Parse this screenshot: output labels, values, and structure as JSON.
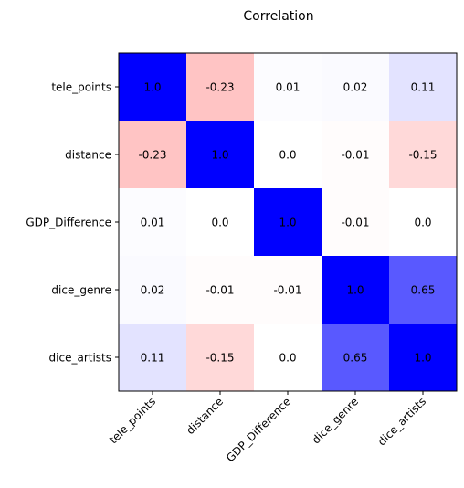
{
  "chart_data": {
    "type": "heatmap",
    "title": "Correlation",
    "x_categories": [
      "tele_points",
      "distance",
      "GDP_Difference",
      "dice_genre",
      "dice_artists"
    ],
    "y_categories": [
      "tele_points",
      "distance",
      "GDP_Difference",
      "dice_genre",
      "dice_artists"
    ],
    "values": [
      [
        1.0,
        -0.23,
        0.01,
        0.02,
        0.11
      ],
      [
        -0.23,
        1.0,
        0.0,
        -0.01,
        -0.15
      ],
      [
        0.01,
        0.0,
        1.0,
        -0.01,
        0.0
      ],
      [
        0.02,
        -0.01,
        -0.01,
        1.0,
        0.65
      ],
      [
        0.11,
        -0.15,
        0.0,
        0.65,
        1.0
      ]
    ],
    "value_labels": [
      [
        "1.0",
        "-0.23",
        "0.01",
        "0.02",
        "0.11"
      ],
      [
        "-0.23",
        "1.0",
        "0.0",
        "-0.01",
        "-0.15"
      ],
      [
        "0.01",
        "0.0",
        "1.0",
        "-0.01",
        "0.0"
      ],
      [
        "0.02",
        "-0.01",
        "-0.01",
        "1.0",
        "0.65"
      ],
      [
        "0.11",
        "-0.15",
        "0.0",
        "0.65",
        "1.0"
      ]
    ],
    "colormap": "bwr_r",
    "vmin": -1,
    "vmax": 1,
    "colors": {
      "positive": "#0000ff",
      "negative": "#ff0000",
      "zero": "#ffffff"
    }
  }
}
